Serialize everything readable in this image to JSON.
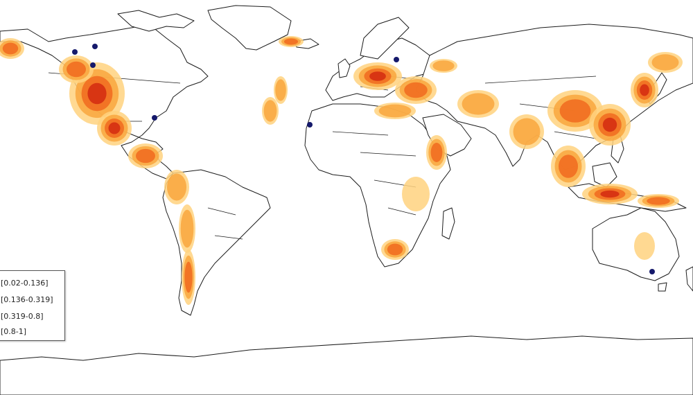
{
  "map": {
    "suitability_palette": [
      "#ffd27f",
      "#f9a63d",
      "#f06a1e",
      "#d42a10"
    ],
    "point_color": "#15196b",
    "legend": [
      {
        "label": "[0.02-0.136]",
        "color": "#ffd27f"
      },
      {
        "label": "[0.136-0.319]",
        "color": "#f9a63d"
      },
      {
        "label": "[0.319-0.8]",
        "color": "#f06a1e"
      },
      {
        "label": "[0.8-1]",
        "color": "#d42a10"
      }
    ]
  }
}
